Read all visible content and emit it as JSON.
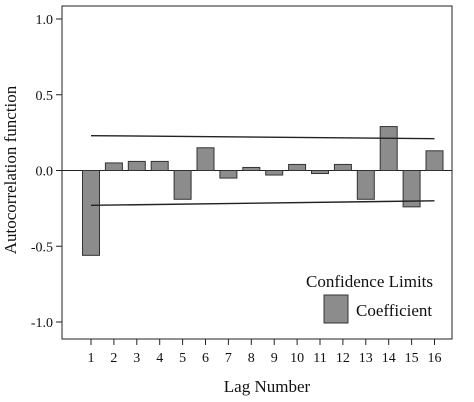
{
  "chart_data": {
    "type": "bar",
    "xlabel": "Lag Number",
    "ylabel": "Autocorrelation function",
    "categories": [
      "1",
      "2",
      "3",
      "4",
      "5",
      "6",
      "7",
      "8",
      "9",
      "10",
      "11",
      "12",
      "13",
      "14",
      "15",
      "16"
    ],
    "series": [
      {
        "name": "Coefficient",
        "values": [
          -0.56,
          0.05,
          0.06,
          0.06,
          -0.19,
          0.15,
          -0.05,
          0.02,
          -0.03,
          0.04,
          -0.02,
          0.04,
          -0.19,
          0.29,
          -0.24,
          0.13
        ]
      }
    ],
    "confidence_limits": {
      "name": "Confidence Limits",
      "upper": [
        0.23,
        0.21
      ],
      "lower": [
        -0.23,
        -0.2
      ]
    },
    "ylim": [
      -1.0,
      1.0
    ],
    "yticks": [
      "1.0",
      "0.5",
      "0.0",
      "-0.5",
      "-1.0"
    ],
    "grid": false,
    "legend_position": "bottom-right",
    "colors": {
      "bar_fill": "#8c8c8c",
      "bar_stroke": "#333333",
      "line": "#222222"
    }
  }
}
